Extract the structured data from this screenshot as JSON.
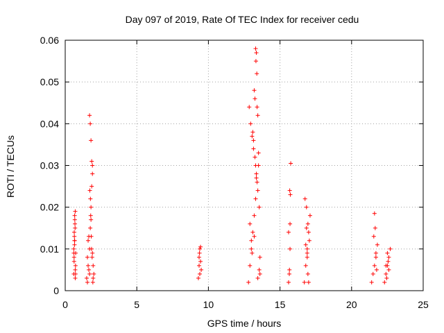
{
  "chart_data": {
    "type": "scatter",
    "title": "Day 097 of 2019, Rate Of TEC Index for receiver cedu",
    "xlabel": "GPS time / hours",
    "ylabel": "ROTI / TECUs",
    "xlim": [
      0,
      25
    ],
    "ylim": [
      0,
      0.06
    ],
    "xticks": [
      "0",
      "5",
      "10",
      "15",
      "20",
      "25"
    ],
    "yticks": [
      "0",
      "0.01",
      "0.02",
      "0.03",
      "0.04",
      "0.05",
      "0.06"
    ],
    "grid": true,
    "marker": "+",
    "color": "#ff0000",
    "series": [
      {
        "name": "ROTI",
        "x": [
          0.6,
          0.62,
          0.65,
          0.68,
          0.7,
          0.72,
          0.6,
          0.63,
          0.66,
          0.7,
          0.73,
          0.64,
          0.67,
          0.7,
          0.62,
          0.65,
          0.69,
          0.72,
          0.6,
          0.66,
          1.5,
          1.55,
          1.6,
          1.65,
          1.7,
          1.75,
          1.8,
          1.85,
          1.9,
          1.95,
          2.0,
          1.7,
          1.75,
          1.8,
          1.85,
          1.9,
          1.72,
          1.78,
          1.82,
          1.88,
          1.93,
          1.76,
          1.8,
          1.84,
          1.6,
          1.65,
          1.7,
          1.55,
          1.9,
          1.95,
          9.3,
          9.35,
          9.4,
          9.45,
          9.5,
          9.35,
          9.4,
          9.45,
          9.38,
          12.8,
          12.9,
          13.0,
          13.1,
          13.2,
          13.3,
          13.4,
          13.5,
          13.6,
          12.85,
          12.95,
          13.05,
          13.15,
          13.25,
          13.35,
          13.45,
          13.55,
          13.3,
          13.35,
          13.32,
          13.38,
          13.2,
          13.25,
          13.4,
          13.45,
          13.1,
          13.15,
          13.5,
          13.3,
          13.35,
          12.9,
          13.0,
          13.6,
          13.55,
          13.45,
          13.05,
          13.2,
          15.6,
          15.65,
          15.7,
          15.75,
          15.68,
          15.72,
          15.6,
          15.7,
          15.66,
          16.7,
          16.8,
          16.9,
          17.0,
          17.1,
          16.75,
          16.85,
          16.95,
          17.05,
          16.9,
          16.95,
          17.0,
          16.8,
          16.85,
          16.9,
          21.4,
          21.5,
          21.6,
          21.7,
          21.8,
          21.55,
          21.65,
          21.6,
          21.7,
          21.75,
          22.3,
          22.4,
          22.5,
          22.6,
          22.7,
          22.45,
          22.55,
          22.5,
          22.6,
          22.4
        ],
        "y": [
          0.004,
          0.008,
          0.012,
          0.016,
          0.019,
          0.006,
          0.01,
          0.014,
          0.018,
          0.005,
          0.009,
          0.013,
          0.017,
          0.003,
          0.007,
          0.011,
          0.015,
          0.004,
          0.009,
          0.012,
          0.003,
          0.008,
          0.012,
          0.005,
          0.01,
          0.015,
          0.02,
          0.025,
          0.03,
          0.006,
          0.004,
          0.042,
          0.04,
          0.036,
          0.031,
          0.028,
          0.024,
          0.018,
          0.013,
          0.008,
          0.002,
          0.022,
          0.017,
          0.01,
          0.006,
          0.013,
          0.004,
          0.002,
          0.009,
          0.003,
          0.003,
          0.006,
          0.01,
          0.0105,
          0.005,
          0.008,
          0.004,
          0.007,
          0.009,
          0.002,
          0.006,
          0.01,
          0.014,
          0.018,
          0.022,
          0.026,
          0.03,
          0.004,
          0.044,
          0.04,
          0.037,
          0.034,
          0.032,
          0.028,
          0.024,
          0.02,
          0.058,
          0.057,
          0.055,
          0.052,
          0.048,
          0.046,
          0.044,
          0.042,
          0.038,
          0.036,
          0.033,
          0.03,
          0.027,
          0.016,
          0.012,
          0.008,
          0.005,
          0.003,
          0.009,
          0.013,
          0.002,
          0.004,
          0.016,
          0.0305,
          0.024,
          0.023,
          0.014,
          0.01,
          0.005,
          0.002,
          0.006,
          0.01,
          0.014,
          0.018,
          0.022,
          0.02,
          0.016,
          0.012,
          0.008,
          0.004,
          0.002,
          0.011,
          0.015,
          0.009,
          0.002,
          0.004,
          0.006,
          0.009,
          0.011,
          0.013,
          0.015,
          0.0185,
          0.008,
          0.005,
          0.002,
          0.004,
          0.006,
          0.008,
          0.01,
          0.003,
          0.007,
          0.009,
          0.005,
          0.006
        ]
      }
    ]
  }
}
